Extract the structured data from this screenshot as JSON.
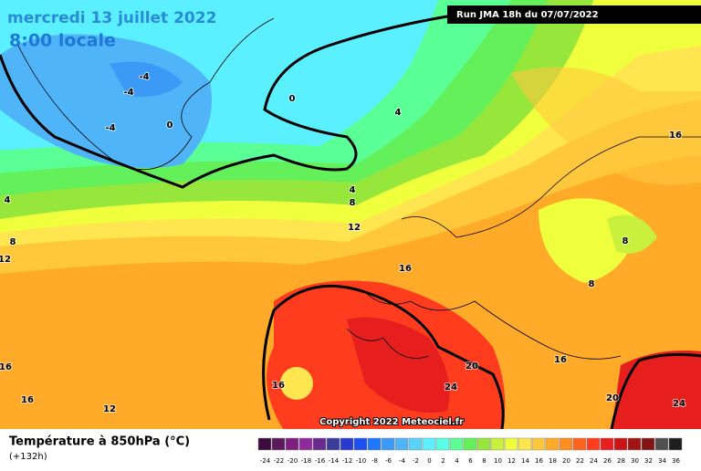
{
  "header": {
    "date": "mercredi 13 juillet 2022",
    "time": "8:00 locale",
    "run": "Run JMA 18h du 07/07/2022"
  },
  "map": {
    "contour_labels": [
      -4,
      -4,
      -4,
      0,
      0,
      4,
      4,
      4,
      8,
      8,
      12,
      12,
      16,
      16,
      8,
      8,
      16,
      16,
      16,
      16,
      12,
      20,
      20,
      24,
      24
    ],
    "copyright": "Copyright 2022 Meteociel.fr"
  },
  "footer": {
    "title": "Température à 850hPa (°C)",
    "lead": "(+132h)"
  },
  "legend": {
    "labels": [
      -24,
      -22,
      -20,
      -18,
      -16,
      -14,
      -12,
      -10,
      -8,
      -6,
      -4,
      -2,
      0,
      2,
      4,
      6,
      8,
      10,
      12,
      14,
      16,
      18,
      20,
      22,
      24,
      26,
      28,
      30,
      32,
      34,
      36
    ],
    "colors": [
      "#3c0a3c",
      "#5c1a5c",
      "#7e1e7e",
      "#8f2a9a",
      "#6b2a8f",
      "#3c3c9a",
      "#2a3ad0",
      "#1e50f0",
      "#1e78ff",
      "#3a9af5",
      "#50b4f8",
      "#5ad2fa",
      "#5af0ff",
      "#5affe6",
      "#5aff96",
      "#64f05a",
      "#96e63c",
      "#c8f03c",
      "#f0ff3c",
      "#ffe650",
      "#ffc83c",
      "#ffaa28",
      "#ff8c1e",
      "#ff641e",
      "#ff3c1e",
      "#e61e1e",
      "#c81414",
      "#a01414",
      "#821414",
      "#505050",
      "#1e1e1e"
    ]
  }
}
